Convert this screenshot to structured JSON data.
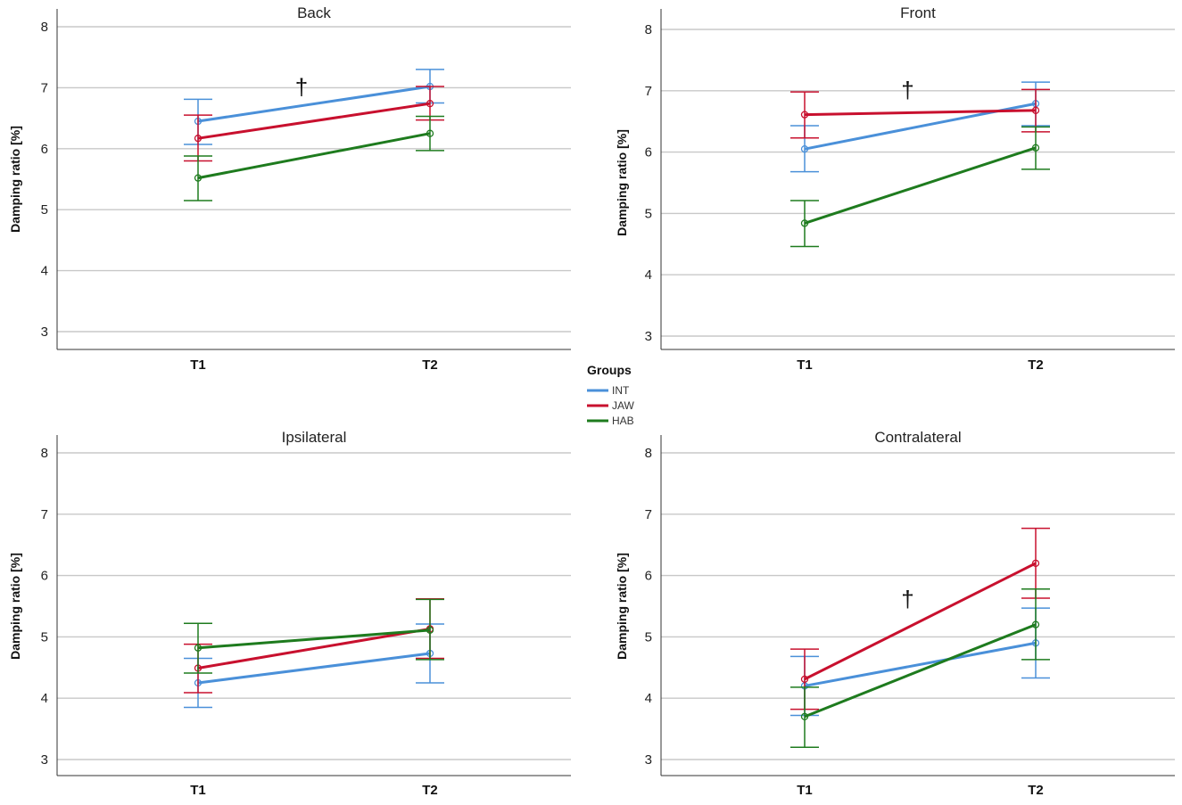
{
  "figure": {
    "legend": {
      "title": "Groups",
      "entries": [
        {
          "name": "INT",
          "color": "#4a90d9"
        },
        {
          "name": "JAW",
          "color": "#c8102e"
        },
        {
          "name": "HAB",
          "color": "#1e7b1e"
        }
      ]
    }
  },
  "chart_data": [
    {
      "type": "line",
      "title": "Back",
      "xlabel": "",
      "ylabel": "Damping ratio [%]",
      "categories": [
        "T1",
        "T2"
      ],
      "ylim": [
        2.7,
        8.3
      ],
      "yticks": [
        3,
        4,
        5,
        6,
        7,
        8
      ],
      "annotations": [
        {
          "text": "†",
          "between": [
            "T1",
            "T2"
          ],
          "y": 7.0
        }
      ],
      "series": [
        {
          "name": "INT",
          "color": "#4a90d9",
          "values": [
            6.45,
            7.02
          ],
          "ci_low": [
            6.07,
            6.75
          ],
          "ci_high": [
            6.81,
            7.3
          ]
        },
        {
          "name": "JAW",
          "color": "#c8102e",
          "values": [
            6.17,
            6.74
          ],
          "ci_low": [
            5.8,
            6.47
          ],
          "ci_high": [
            6.55,
            7.02
          ]
        },
        {
          "name": "HAB",
          "color": "#1e7b1e",
          "values": [
            5.52,
            6.25
          ],
          "ci_low": [
            5.15,
            5.97
          ],
          "ci_high": [
            5.88,
            6.53
          ]
        }
      ]
    },
    {
      "type": "line",
      "title": "Front",
      "xlabel": "",
      "ylabel": "Damping ratio [%]",
      "categories": [
        "T1",
        "T2"
      ],
      "ylim": [
        2.7,
        8.3
      ],
      "yticks": [
        3,
        4,
        5,
        6,
        7,
        8
      ],
      "annotations": [
        {
          "text": "†",
          "between": [
            "T1",
            "T2"
          ],
          "y": 7.0
        }
      ],
      "series": [
        {
          "name": "INT",
          "color": "#4a90d9",
          "values": [
            6.05,
            6.79
          ],
          "ci_low": [
            5.68,
            6.43
          ],
          "ci_high": [
            6.43,
            7.14
          ]
        },
        {
          "name": "JAW",
          "color": "#c8102e",
          "values": [
            6.61,
            6.68
          ],
          "ci_low": [
            6.23,
            6.33
          ],
          "ci_high": [
            6.98,
            7.02
          ]
        },
        {
          "name": "HAB",
          "color": "#1e7b1e",
          "values": [
            4.84,
            6.07
          ],
          "ci_low": [
            4.46,
            5.72
          ],
          "ci_high": [
            5.21,
            6.41
          ]
        }
      ]
    },
    {
      "type": "line",
      "title": "Ipsilateral",
      "xlabel": "",
      "ylabel": "Damping ratio [%]",
      "categories": [
        "T1",
        "T2"
      ],
      "ylim": [
        2.7,
        8.3
      ],
      "yticks": [
        3,
        4,
        5,
        6,
        7,
        8
      ],
      "annotations": [],
      "series": [
        {
          "name": "INT",
          "color": "#4a90d9",
          "values": [
            4.25,
            4.73
          ],
          "ci_low": [
            3.85,
            4.25
          ],
          "ci_high": [
            4.65,
            5.21
          ]
        },
        {
          "name": "JAW",
          "color": "#c8102e",
          "values": [
            4.49,
            5.13
          ],
          "ci_low": [
            4.09,
            4.65
          ],
          "ci_high": [
            4.88,
            5.62
          ]
        },
        {
          "name": "HAB",
          "color": "#1e7b1e",
          "values": [
            4.82,
            5.11
          ],
          "ci_low": [
            4.41,
            4.63
          ],
          "ci_high": [
            5.22,
            5.61
          ]
        }
      ]
    },
    {
      "type": "line",
      "title": "Contralateral",
      "xlabel": "",
      "ylabel": "Damping ratio [%]",
      "categories": [
        "T1",
        "T2"
      ],
      "ylim": [
        2.7,
        8.3
      ],
      "yticks": [
        3,
        4,
        5,
        6,
        7,
        8
      ],
      "annotations": [
        {
          "text": "†",
          "between": [
            "T1",
            "T2"
          ],
          "y": 5.6
        }
      ],
      "series": [
        {
          "name": "INT",
          "color": "#4a90d9",
          "values": [
            4.2,
            4.9
          ],
          "ci_low": [
            3.72,
            4.33
          ],
          "ci_high": [
            4.68,
            5.47
          ]
        },
        {
          "name": "JAW",
          "color": "#c8102e",
          "values": [
            4.31,
            6.2
          ],
          "ci_low": [
            3.82,
            5.63
          ],
          "ci_high": [
            4.8,
            6.77
          ]
        },
        {
          "name": "HAB",
          "color": "#1e7b1e",
          "values": [
            3.7,
            5.2
          ],
          "ci_low": [
            3.2,
            4.63
          ],
          "ci_high": [
            4.18,
            5.78
          ]
        }
      ]
    }
  ]
}
